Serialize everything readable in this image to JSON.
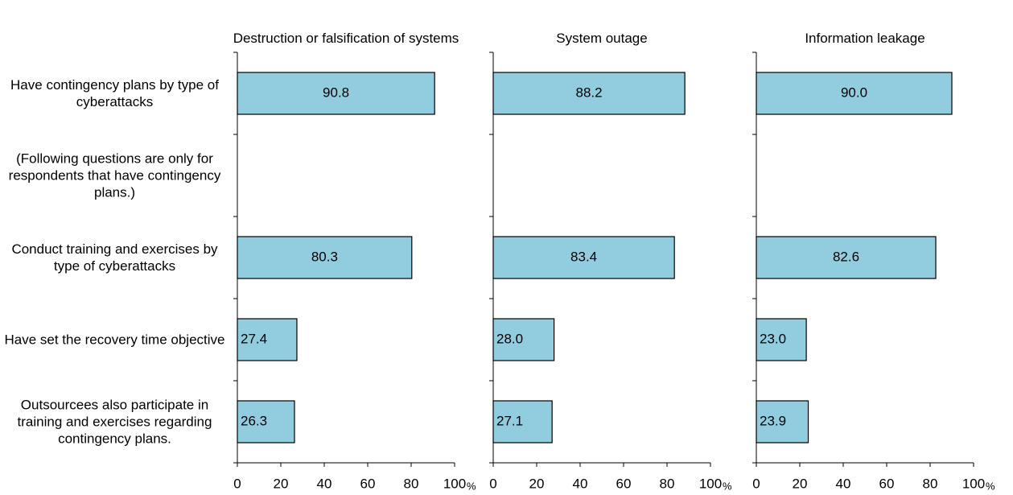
{
  "chart_data": [
    {
      "type": "bar",
      "title": "Destruction or falsification of systems",
      "categories": [
        "Have contingency plans by type of cyberattacks",
        "(Following questions are only for respondents that have contingency plans.)",
        "Conduct training and exercises by type of cyberattacks",
        "Have set the recovery time objective",
        "Outsourcees also participate in training and exercises regarding contingency plans."
      ],
      "values": [
        90.8,
        null,
        80.3,
        27.4,
        26.3
      ],
      "value_labels": [
        "90.8",
        null,
        "80.3",
        "27.4",
        "26.3"
      ],
      "color": "#92cddf",
      "xlim": [
        0,
        100
      ],
      "xticks": [
        0,
        20,
        40,
        60,
        80,
        100
      ],
      "x_unit": "%"
    },
    {
      "type": "bar",
      "title": "System outage",
      "values": [
        88.2,
        null,
        83.4,
        28.0,
        27.1
      ],
      "value_labels": [
        "88.2",
        null,
        "83.4",
        "28.0",
        "27.1"
      ],
      "color": "#92cddf",
      "xlim": [
        0,
        100
      ],
      "xticks": [
        0,
        20,
        40,
        60,
        80,
        100
      ],
      "x_unit": "%"
    },
    {
      "type": "bar",
      "title": "Information leakage",
      "values": [
        90.0,
        null,
        82.6,
        23.0,
        23.9
      ],
      "value_labels": [
        "90.0",
        null,
        "82.6",
        "23.0",
        "23.9"
      ],
      "color": "#92cddf",
      "xlim": [
        0,
        100
      ],
      "xticks": [
        0,
        20,
        40,
        60,
        80,
        100
      ],
      "x_unit": "%"
    }
  ]
}
